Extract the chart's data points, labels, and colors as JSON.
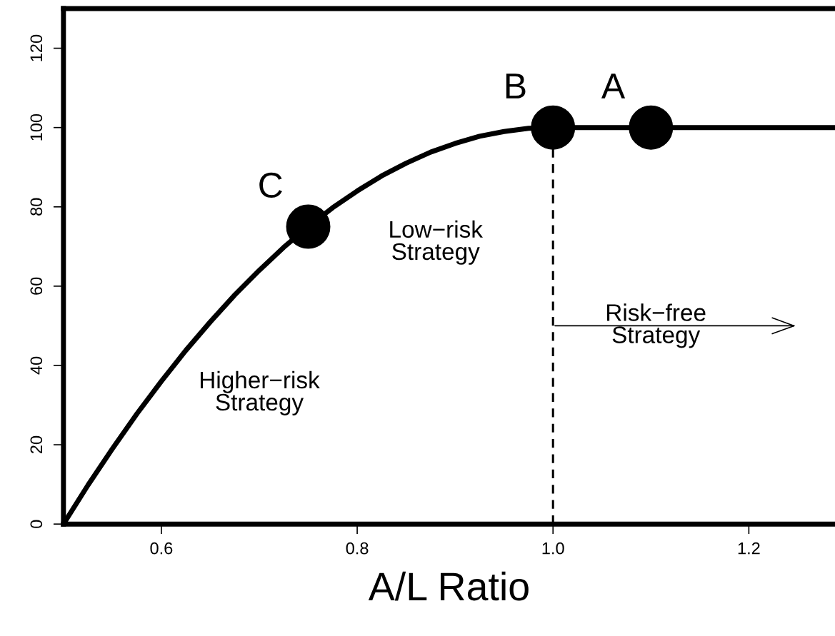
{
  "chart_data": {
    "type": "line",
    "xlabel": "A/L Ratio",
    "xlim": [
      0.5,
      1.288
    ],
    "ylim": [
      0,
      130
    ],
    "xticks": [
      0.6,
      0.8,
      {
        "value": 1.0,
        "label": "1.0"
      },
      1.2
    ],
    "yticks": [
      0,
      20,
      40,
      60,
      80,
      100,
      120
    ],
    "grid": false,
    "marker": "none",
    "line_style": "solid",
    "series": [
      {
        "color": "#000000",
        "x": [
          0.5,
          0.525,
          0.55,
          0.575,
          0.6,
          0.625,
          0.65,
          0.675,
          0.7,
          0.725,
          0.75,
          0.775,
          0.8,
          0.825,
          0.85,
          0.875,
          0.9,
          0.925,
          0.95,
          0.975,
          1.0,
          1.288
        ],
        "values": [
          0,
          9.8,
          19,
          27.8,
          36,
          43.8,
          51,
          57.8,
          64,
          69.8,
          75,
          79.8,
          84,
          87.8,
          91,
          93.8,
          96,
          97.8,
          99,
          99.8,
          100,
          100
        ]
      },
      {
        "type": "scatter",
        "color": "#000000",
        "marker": "circle",
        "x": [
          0.75,
          1.0,
          1.1
        ],
        "values": [
          75,
          100,
          100
        ]
      }
    ],
    "ref_lines": [
      {
        "axis": "x",
        "value": 1.0,
        "color": "#000000",
        "line_style": "dashed"
      }
    ],
    "annotations": [
      {
        "text": "C",
        "x": 0.75,
        "y": 75
      },
      {
        "text": "B",
        "x": 1.0,
        "y": 100
      },
      {
        "text": "A",
        "x": 1.1,
        "y": 100
      },
      "Higher−risk\nStrategy",
      "Low−risk\nStrategy",
      "Risk−free\nStrategy"
    ]
  }
}
